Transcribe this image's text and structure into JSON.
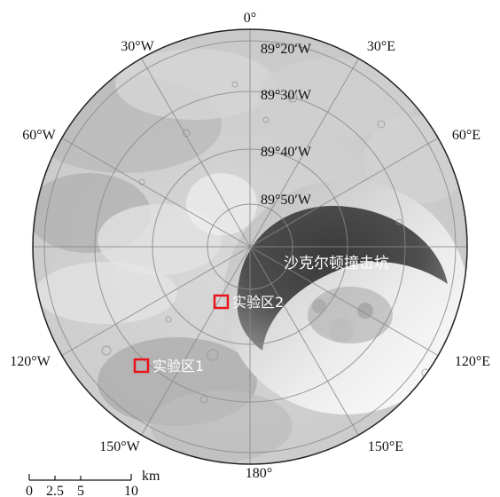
{
  "map": {
    "longitude_labels": {
      "north": "0°",
      "nw30": "30°W",
      "ne30": "30°E",
      "w60": "60°W",
      "e60": "60°E",
      "w120": "120°W",
      "e120": "120°E",
      "sw150": "150°W",
      "se150": "150°E",
      "south": "180°"
    },
    "latitude_rings": [
      "89°20′W",
      "89°30′W",
      "89°40′W",
      "89°50′W"
    ],
    "crater_label": "沙克尔顿撞击坑",
    "sites": [
      {
        "label": "实验区2",
        "color": "#e8141c"
      },
      {
        "label": "实验区1",
        "color": "#e8141c"
      }
    ],
    "scale_bar": {
      "ticks": [
        "0",
        "2.5",
        "5",
        "10"
      ],
      "unit": "km"
    }
  }
}
